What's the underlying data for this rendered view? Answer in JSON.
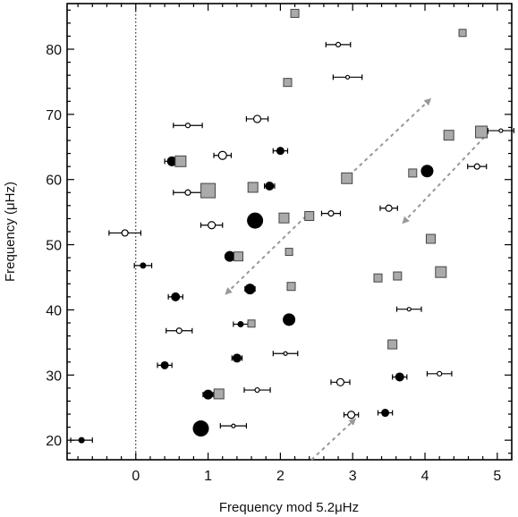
{
  "chart_data": {
    "type": "scatter",
    "xlabel": "Frequency mod 5.2μHz",
    "ylabel": "Frequency (μHz)",
    "xlim": [
      -0.95,
      5.2
    ],
    "ylim": [
      17,
      87
    ],
    "x_ticks": [
      0,
      1,
      2,
      3,
      4,
      5
    ],
    "y_ticks": [
      20,
      30,
      40,
      50,
      60,
      70,
      80
    ],
    "reference_line_x": 0,
    "grid": false,
    "colors": {
      "filled_marker": "#000000",
      "square_fill": "#aaaaaa",
      "square_stroke": "#444444",
      "arrow": "#999999"
    },
    "series": [
      {
        "marker": "filled-circle",
        "points": [
          {
            "x": -0.75,
            "y": 20.0,
            "r": 3.5,
            "xerr": 0.15
          },
          {
            "x": 0.1,
            "y": 46.8,
            "r": 3.5,
            "xerr": 0.12
          },
          {
            "x": 0.4,
            "y": 31.5,
            "r": 4.5,
            "xerr": 0.1
          },
          {
            "x": 0.55,
            "y": 42.0,
            "r": 5,
            "xerr": 0.1
          },
          {
            "x": 0.5,
            "y": 62.8,
            "r": 5.5,
            "xerr": 0.1
          },
          {
            "x": 1.0,
            "y": 27.0,
            "r": 5.5,
            "xerr": 0.07
          },
          {
            "x": 0.9,
            "y": 21.8,
            "r": 9,
            "xerr": 0
          },
          {
            "x": 1.3,
            "y": 48.2,
            "r": 6,
            "xerr": 0
          },
          {
            "x": 1.4,
            "y": 32.6,
            "r": 5,
            "xerr": 0.07
          },
          {
            "x": 1.45,
            "y": 37.8,
            "r": 3.5,
            "xerr": 0.1
          },
          {
            "x": 1.58,
            "y": 43.2,
            "r": 6,
            "xerr": 0.07
          },
          {
            "x": 1.65,
            "y": 53.7,
            "r": 9,
            "xerr": 0
          },
          {
            "x": 1.85,
            "y": 59.0,
            "r": 5,
            "xerr": 0.07
          },
          {
            "x": 2.0,
            "y": 64.4,
            "r": 4.5,
            "xerr": 0.1
          },
          {
            "x": 2.12,
            "y": 38.5,
            "r": 7,
            "xerr": 0
          },
          {
            "x": 3.45,
            "y": 24.2,
            "r": 4.5,
            "xerr": 0.1
          },
          {
            "x": 3.65,
            "y": 29.7,
            "r": 5,
            "xerr": 0.1
          },
          {
            "x": 4.03,
            "y": 61.3,
            "r": 7,
            "xerr": 0.07
          }
        ]
      },
      {
        "marker": "open-circle",
        "points": [
          {
            "x": -0.15,
            "y": 51.8,
            "r": 3.5,
            "xerr": 0.22
          },
          {
            "x": 0.6,
            "y": 36.8,
            "r": 3,
            "xerr": 0.18
          },
          {
            "x": 0.72,
            "y": 58.0,
            "r": 3,
            "xerr": 0.2
          },
          {
            "x": 0.72,
            "y": 68.3,
            "r": 2.5,
            "xerr": 0.2
          },
          {
            "x": 1.05,
            "y": 53.0,
            "r": 4,
            "xerr": 0.15
          },
          {
            "x": 1.2,
            "y": 63.7,
            "r": 4.5,
            "xerr": 0.12
          },
          {
            "x": 1.35,
            "y": 22.2,
            "r": 2,
            "xerr": 0.18
          },
          {
            "x": 1.68,
            "y": 27.7,
            "r": 2.5,
            "xerr": 0.18
          },
          {
            "x": 1.68,
            "y": 69.3,
            "r": 4,
            "xerr": 0.15
          },
          {
            "x": 2.07,
            "y": 33.3,
            "r": 2,
            "xerr": 0.17
          },
          {
            "x": 2.7,
            "y": 54.8,
            "r": 3,
            "xerr": 0.13
          },
          {
            "x": 2.83,
            "y": 28.9,
            "r": 4,
            "xerr": 0.13
          },
          {
            "x": 2.8,
            "y": 80.7,
            "r": 2.5,
            "xerr": 0.17
          },
          {
            "x": 2.93,
            "y": 75.7,
            "r": 2,
            "xerr": 0.2
          },
          {
            "x": 2.98,
            "y": 23.9,
            "r": 4,
            "xerr": 0.1
          },
          {
            "x": 3.5,
            "y": 55.6,
            "r": 3.5,
            "xerr": 0.12
          },
          {
            "x": 3.78,
            "y": 40.1,
            "r": 2,
            "xerr": 0.17
          },
          {
            "x": 4.2,
            "y": 30.2,
            "r": 2.5,
            "xerr": 0.17
          },
          {
            "x": 4.72,
            "y": 62.0,
            "r": 3,
            "xerr": 0.13
          },
          {
            "x": 5.05,
            "y": 67.5,
            "r": 2,
            "xerr": 0.18
          }
        ]
      },
      {
        "marker": "square",
        "points": [
          {
            "x": 0.62,
            "y": 62.8,
            "s": 12
          },
          {
            "x": 1.0,
            "y": 58.3,
            "s": 16
          },
          {
            "x": 1.15,
            "y": 27.1,
            "s": 11
          },
          {
            "x": 1.42,
            "y": 48.2,
            "s": 10
          },
          {
            "x": 1.6,
            "y": 37.9,
            "s": 8
          },
          {
            "x": 1.62,
            "y": 58.8,
            "s": 11
          },
          {
            "x": 2.05,
            "y": 54.1,
            "s": 11
          },
          {
            "x": 2.1,
            "y": 74.9,
            "s": 9
          },
          {
            "x": 2.12,
            "y": 48.9,
            "s": 8
          },
          {
            "x": 2.15,
            "y": 43.6,
            "s": 9
          },
          {
            "x": 2.2,
            "y": 85.5,
            "s": 9
          },
          {
            "x": 2.4,
            "y": 54.4,
            "s": 10
          },
          {
            "x": 2.92,
            "y": 60.2,
            "s": 12
          },
          {
            "x": 3.35,
            "y": 44.9,
            "s": 9
          },
          {
            "x": 3.55,
            "y": 34.7,
            "s": 10
          },
          {
            "x": 3.62,
            "y": 45.2,
            "s": 9
          },
          {
            "x": 3.83,
            "y": 61.0,
            "s": 9
          },
          {
            "x": 4.08,
            "y": 50.9,
            "s": 10
          },
          {
            "x": 4.22,
            "y": 45.8,
            "s": 12
          },
          {
            "x": 4.33,
            "y": 66.8,
            "s": 11
          },
          {
            "x": 4.52,
            "y": 82.5,
            "s": 8
          },
          {
            "x": 4.78,
            "y": 67.3,
            "s": 13
          }
        ]
      }
    ],
    "annotations": [
      {
        "kind": "dashed-arrow",
        "from": [
          1.25,
          42.5
        ],
        "to": [
          2.43,
          55.2
        ],
        "head": "start"
      },
      {
        "kind": "dashed-arrow",
        "from": [
          2.95,
          60.6
        ],
        "to": [
          4.07,
          72.3
        ],
        "head": "end"
      },
      {
        "kind": "dashed-arrow",
        "from": [
          3.7,
          53.4
        ],
        "to": [
          4.88,
          67.2
        ],
        "head": "start"
      },
      {
        "kind": "dashed-arrow",
        "from": [
          2.43,
          17.0
        ],
        "to": [
          3.03,
          23.2
        ],
        "head": "end"
      }
    ]
  }
}
